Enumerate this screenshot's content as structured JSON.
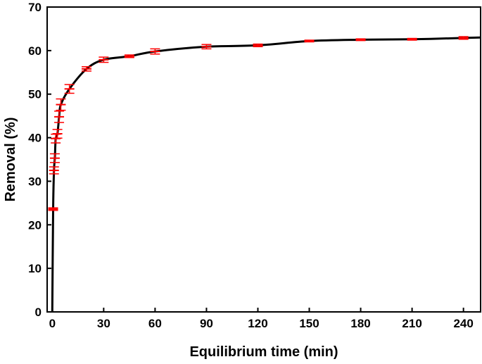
{
  "chart_data": {
    "type": "line",
    "title": "",
    "xlabel": "Equilibrium time (min)",
    "ylabel": "Removal (%)",
    "xlim": [
      -3,
      250
    ],
    "ylim": [
      0,
      70
    ],
    "x_ticks": [
      0,
      30,
      60,
      90,
      120,
      150,
      180,
      210,
      240
    ],
    "y_ticks": [
      0,
      10,
      20,
      30,
      40,
      50,
      60,
      70
    ],
    "grid": false,
    "legend": "none",
    "line_color": "#000000",
    "marker_color": "#ff0000",
    "series": [
      {
        "x": [
          0,
          0.5,
          1,
          1.5,
          2,
          3,
          4,
          5,
          10,
          20,
          30,
          45,
          60,
          90,
          120,
          150,
          180,
          210,
          240,
          250
        ],
        "y": [
          0,
          23.6,
          32.5,
          35.3,
          39.8,
          40.9,
          44.8,
          47.6,
          51.2,
          55.8,
          57.9,
          58.7,
          59.8,
          60.9,
          61.2,
          62.2,
          62.5,
          62.6,
          62.9,
          63.0
        ],
        "error": [
          0,
          0.3,
          0.8,
          1.0,
          1.0,
          1.0,
          1.3,
          1.3,
          1.0,
          0.5,
          0.6,
          0.3,
          0.6,
          0.5,
          0.3,
          0.2,
          0.2,
          0.2,
          0.3,
          0
        ]
      }
    ]
  }
}
